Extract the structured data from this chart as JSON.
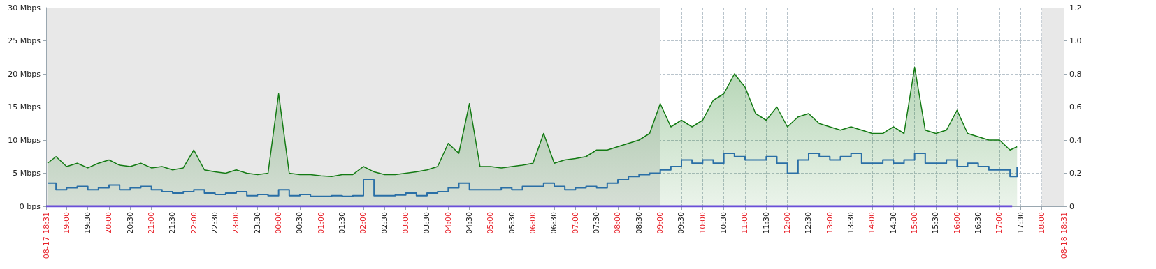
{
  "chart_data": {
    "type": "area",
    "xlim": [
      "--08-17T18:31",
      "--08-18T18:31"
    ],
    "xticks": [
      {
        "value": "--08-17T18:31",
        "label": "08-17 18:31"
      },
      {
        "value": "--08-17T19:00",
        "label": "19:00"
      },
      {
        "value": "--08-17T19:30",
        "label": "19:30"
      },
      {
        "value": "--08-17T20:00",
        "label": "20:00"
      },
      {
        "value": "--08-17T20:30",
        "label": "20:30"
      },
      {
        "value": "--08-17T21:00",
        "label": "21:00"
      },
      {
        "value": "--08-17T21:30",
        "label": "21:30"
      },
      {
        "value": "--08-17T22:00",
        "label": "22:00"
      },
      {
        "value": "--08-17T22:30",
        "label": "22:30"
      },
      {
        "value": "--08-17T23:00",
        "label": "23:00"
      },
      {
        "value": "--08-17T23:30",
        "label": "23:30"
      },
      {
        "value": "--08-18T00:00",
        "label": "00:00"
      },
      {
        "value": "--08-18T00:30",
        "label": "00:30"
      },
      {
        "value": "--08-18T01:00",
        "label": "01:00"
      },
      {
        "value": "--08-18T01:30",
        "label": "01:30"
      },
      {
        "value": "--08-18T02:00",
        "label": "02:00"
      },
      {
        "value": "--08-18T02:30",
        "label": "02:30"
      },
      {
        "value": "--08-18T03:00",
        "label": "03:00"
      },
      {
        "value": "--08-18T03:30",
        "label": "03:30"
      },
      {
        "value": "--08-18T04:00",
        "label": "04:00"
      },
      {
        "value": "--08-18T04:30",
        "label": "04:30"
      },
      {
        "value": "--08-18T05:00",
        "label": "05:00"
      },
      {
        "value": "--08-18T05:30",
        "label": "05:30"
      },
      {
        "value": "--08-18T06:00",
        "label": "06:00"
      },
      {
        "value": "--08-18T06:30",
        "label": "06:30"
      },
      {
        "value": "--08-18T07:00",
        "label": "07:00"
      },
      {
        "value": "--08-18T07:30",
        "label": "07:30"
      },
      {
        "value": "--08-18T08:00",
        "label": "08:00"
      },
      {
        "value": "--08-18T08:30",
        "label": "08:30"
      },
      {
        "value": "--08-18T09:00",
        "label": "09:00"
      },
      {
        "value": "--08-18T09:30",
        "label": "09:30"
      },
      {
        "value": "--08-18T10:00",
        "label": "10:00"
      },
      {
        "value": "--08-18T10:30",
        "label": "10:30"
      },
      {
        "value": "--08-18T11:00",
        "label": "11:00"
      },
      {
        "value": "--08-18T11:30",
        "label": "11:30"
      },
      {
        "value": "--08-18T12:00",
        "label": "12:00"
      },
      {
        "value": "--08-18T12:30",
        "label": "12:30"
      },
      {
        "value": "--08-18T13:00",
        "label": "13:00"
      },
      {
        "value": "--08-18T13:30",
        "label": "13:30"
      },
      {
        "value": "--08-18T14:00",
        "label": "14:00"
      },
      {
        "value": "--08-18T14:30",
        "label": "14:30"
      },
      {
        "value": "--08-18T15:00",
        "label": "15:00"
      },
      {
        "value": "--08-18T15:30",
        "label": "15:30"
      },
      {
        "value": "--08-18T16:00",
        "label": "16:00"
      },
      {
        "value": "--08-18T16:30",
        "label": "16:30"
      },
      {
        "value": "--08-18T17:00",
        "label": "17:00"
      },
      {
        "value": "--08-18T17:30",
        "label": "17:30"
      },
      {
        "value": "--08-18T18:00",
        "label": "18:00"
      },
      {
        "value": "--08-18T18:31",
        "label": "08-18 18:31"
      }
    ],
    "ylim": [
      0,
      30
    ],
    "yticks": [
      {
        "value": 0,
        "label": "0 bps"
      },
      {
        "value": 5,
        "label": "5 Mbps"
      },
      {
        "value": 10,
        "label": "10 Mbps"
      },
      {
        "value": 15,
        "label": "15 Mbps"
      },
      {
        "value": 20,
        "label": "20 Mbps"
      },
      {
        "value": 25,
        "label": "25 Mbps"
      },
      {
        "value": 30,
        "label": "30 Mbps"
      }
    ],
    "y2lim": [
      0,
      1.2
    ],
    "y2ticks": [
      0,
      0.2,
      0.4,
      0.6,
      0.8,
      {
        "value": 1,
        "label": "1.0"
      },
      1.2
    ],
    "grid": true,
    "bands": [
      {
        "axis": "x",
        "from": "--08-17T18:31",
        "to": "--08-18T09:00",
        "color": "#e8e8e8"
      },
      {
        "axis": "x",
        "from": "--08-18T18:00",
        "to": "--08-18T18:31",
        "color": "#e8e8e8"
      }
    ],
    "x": [
      "--08-17T18:33",
      "--08-17T18:45",
      "--08-17T19:00",
      "--08-17T19:15",
      "--08-17T19:30",
      "--08-17T19:45",
      "--08-17T20:00",
      "--08-17T20:15",
      "--08-17T20:30",
      "--08-17T20:45",
      "--08-17T21:00",
      "--08-17T21:15",
      "--08-17T21:30",
      "--08-17T21:45",
      "--08-17T22:00",
      "--08-17T22:15",
      "--08-17T22:30",
      "--08-17T22:45",
      "--08-17T23:00",
      "--08-17T23:15",
      "--08-17T23:30",
      "--08-17T23:45",
      "--08-18T00:00",
      "--08-18T00:15",
      "--08-18T00:30",
      "--08-18T00:45",
      "--08-18T01:00",
      "--08-18T01:15",
      "--08-18T01:30",
      "--08-18T01:45",
      "--08-18T02:00",
      "--08-18T02:15",
      "--08-18T02:30",
      "--08-18T02:45",
      "--08-18T03:00",
      "--08-18T03:15",
      "--08-18T03:30",
      "--08-18T03:45",
      "--08-18T04:00",
      "--08-18T04:15",
      "--08-18T04:30",
      "--08-18T04:45",
      "--08-18T05:00",
      "--08-18T05:15",
      "--08-18T05:30",
      "--08-18T05:45",
      "--08-18T06:00",
      "--08-18T06:15",
      "--08-18T06:30",
      "--08-18T06:45",
      "--08-18T07:00",
      "--08-18T07:15",
      "--08-18T07:30",
      "--08-18T07:45",
      "--08-18T08:00",
      "--08-18T08:15",
      "--08-18T08:30",
      "--08-18T08:45",
      "--08-18T09:00",
      "--08-18T09:15",
      "--08-18T09:30",
      "--08-18T09:45",
      "--08-18T10:00",
      "--08-18T10:15",
      "--08-18T10:30",
      "--08-18T10:45",
      "--08-18T11:00",
      "--08-18T11:15",
      "--08-18T11:30",
      "--08-18T11:45",
      "--08-18T12:00",
      "--08-18T12:15",
      "--08-18T12:30",
      "--08-18T12:45",
      "--08-18T13:00",
      "--08-18T13:15",
      "--08-18T13:30",
      "--08-18T13:45",
      "--08-18T14:00",
      "--08-18T14:15",
      "--08-18T14:30",
      "--08-18T14:45",
      "--08-18T15:00",
      "--08-18T15:15",
      "--08-18T15:30",
      "--08-18T15:45",
      "--08-18T16:00",
      "--08-18T16:15",
      "--08-18T16:30",
      "--08-18T16:45",
      "--08-18T17:00",
      "--08-18T17:15",
      "--08-18T17:25"
    ],
    "series": [
      {
        "color": "#137a13",
        "values": [
          6.5,
          7.5,
          6,
          6.5,
          5.8,
          6.5,
          7,
          6.2,
          6,
          6.5,
          5.8,
          6,
          5.5,
          5.8,
          8.5,
          5.5,
          5.2,
          5,
          5.5,
          5,
          4.8,
          5,
          17,
          5,
          4.8,
          4.8,
          4.6,
          4.5,
          4.8,
          4.8,
          6,
          5.2,
          4.8,
          4.8,
          5,
          5.2,
          5.5,
          6,
          9.5,
          8,
          15.5,
          6,
          6,
          5.8,
          6,
          6.2,
          6.5,
          11,
          6.5,
          7,
          7.2,
          7.5,
          8.5,
          8.5,
          9,
          9.5,
          10,
          11,
          15.5,
          12,
          13,
          12,
          13,
          16,
          17,
          20,
          18,
          14,
          13,
          15,
          12,
          13.5,
          14,
          12.5,
          12,
          11.5,
          12,
          11.5,
          11,
          11,
          12,
          11,
          21,
          11.5,
          11,
          11.5,
          14.5,
          11,
          10.5,
          10,
          10,
          8.5,
          9
        ]
      },
      {
        "type": "step",
        "color": "#2a6fa6",
        "values": [
          3.5,
          2.5,
          2.8,
          3,
          2.5,
          2.8,
          3.2,
          2.5,
          2.8,
          3,
          2.5,
          2.2,
          2,
          2.2,
          2.5,
          2,
          1.8,
          2,
          2.2,
          1.6,
          1.8,
          1.6,
          2.5,
          1.6,
          1.8,
          1.5,
          1.5,
          1.6,
          1.5,
          1.6,
          4,
          1.6,
          1.6,
          1.7,
          2,
          1.6,
          2,
          2.2,
          2.8,
          3.5,
          2.5,
          2.5,
          2.5,
          2.8,
          2.5,
          3,
          3,
          3.5,
          3,
          2.5,
          2.8,
          3,
          2.8,
          3.5,
          4,
          4.5,
          4.8,
          5,
          5.5,
          6,
          7,
          6.5,
          7,
          6.5,
          8,
          7.5,
          7,
          7,
          7.5,
          6.5,
          5,
          7,
          8,
          7.5,
          7,
          7.5,
          8,
          6.5,
          6.5,
          7,
          6.5,
          7,
          8,
          6.5,
          6.5,
          7,
          6,
          6.5,
          6,
          5.5,
          5.5,
          4.5,
          6
        ]
      },
      {
        "type": "line",
        "axis": "y2",
        "color": "#6a4fd8",
        "x": [
          "--08-17T18:31",
          "--08-18T17:18"
        ],
        "values": [
          0,
          0
        ]
      }
    ]
  }
}
